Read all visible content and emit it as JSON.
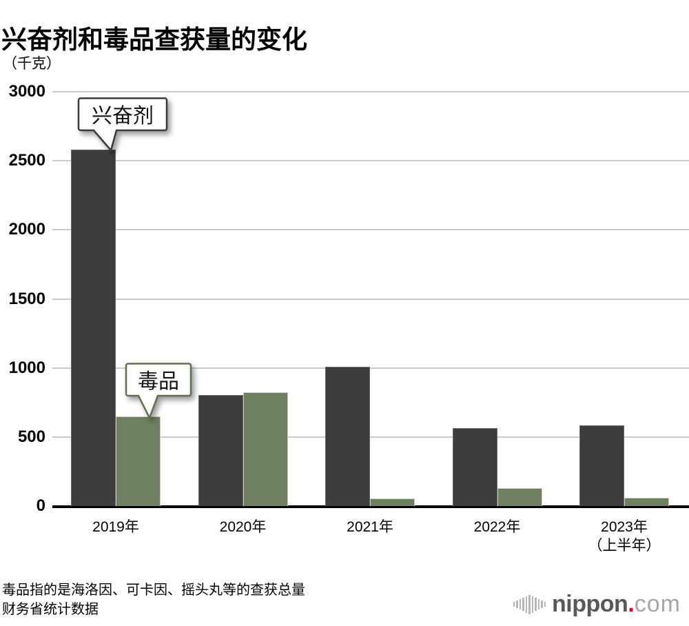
{
  "header": {
    "title": "兴奋剂和毒品查获量的变化",
    "unit_label": "（千克）"
  },
  "chart_data": {
    "type": "bar",
    "title": "兴奋剂和毒品查获量的变化",
    "ylabel": "（千克）",
    "xlabel": "",
    "ylim": [
      0,
      3000
    ],
    "yticks": [
      0,
      500,
      1000,
      1500,
      2000,
      2500,
      3000
    ],
    "grid": true,
    "legend_position": "callouts-on-first-group",
    "categories": [
      "2019年",
      "2020年",
      "2021年",
      "2022年",
      "2023年\n（上半年）"
    ],
    "series": [
      {
        "name": "兴奋剂",
        "color": "#3d3d3d",
        "values": [
          2580,
          805,
          1010,
          565,
          585
        ]
      },
      {
        "name": "毒品",
        "color": "#6e8060",
        "values": [
          650,
          822,
          57,
          132,
          62
        ]
      }
    ],
    "annotations": [
      {
        "text": "兴奋剂",
        "series": "兴奋剂",
        "category": "2019年",
        "border_color": "#3a3a3a"
      },
      {
        "text": "毒品",
        "series": "毒品",
        "category": "2019年",
        "border_color": "#5f7050"
      }
    ]
  },
  "footer": {
    "note": "毒品指的是海洛因、可卡因、摇头丸等的查获总量",
    "source": "财务省统计数据"
  },
  "logo": {
    "name": "nippon",
    "dot": ".",
    "suffix": "com",
    "brand_red": "#e60012"
  }
}
